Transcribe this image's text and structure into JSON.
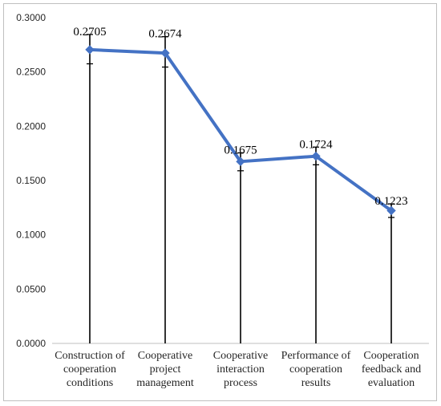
{
  "chart_data": {
    "type": "line",
    "categories": [
      [
        "Construction of",
        "cooperation",
        "conditions"
      ],
      [
        "Cooperative",
        "project",
        "management"
      ],
      [
        "Cooperative",
        "interaction",
        "process"
      ],
      [
        "Performance of",
        "cooperation",
        "results"
      ],
      [
        "Cooperation",
        "feedback and",
        "evaluation"
      ]
    ],
    "series": [
      {
        "values": [
          0.2705,
          0.2674,
          0.1675,
          0.1724,
          0.1223
        ],
        "data_labels": [
          "0.2705",
          "0.2674",
          "0.1675",
          "0.1724",
          "0.1223"
        ],
        "error_high": [
          0.2845,
          0.2825,
          0.1755,
          0.1808,
          0.1285
        ],
        "error_low": [
          0.2575,
          0.2545,
          0.159,
          0.1645,
          0.116
        ],
        "color": "#4472c4",
        "marker": "diamond"
      }
    ],
    "ylim": [
      0,
      0.3
    ],
    "yticks": [
      "0.0000",
      "0.0500",
      "0.1000",
      "0.1500",
      "0.2000",
      "0.2500",
      "0.3000"
    ],
    "ytick_values": [
      0,
      0.05,
      0.1,
      0.15,
      0.2,
      0.25,
      0.3
    ],
    "grid": false,
    "error_bars": "vertical lines from 0 to upper cap with caps at upper and lower error",
    "title": "",
    "xlabel": "",
    "ylabel": ""
  }
}
